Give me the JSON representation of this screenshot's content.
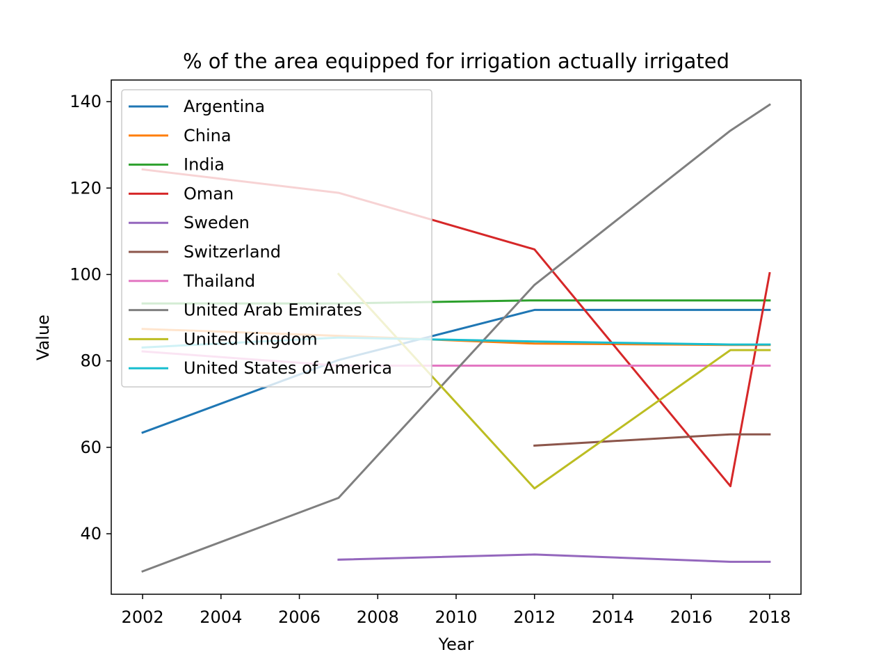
{
  "chart_data": {
    "type": "line",
    "title": "% of the area equipped for irrigation actually irrigated",
    "xlabel": "Year",
    "ylabel": "Value",
    "xlim": [
      2001.2,
      2018.8
    ],
    "ylim": [
      26,
      145
    ],
    "xticks": [
      2002,
      2004,
      2006,
      2008,
      2010,
      2012,
      2014,
      2016,
      2018
    ],
    "yticks": [
      40,
      60,
      80,
      100,
      120,
      140
    ],
    "grid": false,
    "legend_position": "top-left",
    "series": [
      {
        "name": "Argentina",
        "color": "#1f77b4",
        "points": [
          [
            2002,
            63.4
          ],
          [
            2007,
            80.2
          ],
          [
            2012,
            91.8
          ],
          [
            2017,
            91.8
          ],
          [
            2018,
            91.8
          ]
        ]
      },
      {
        "name": "China",
        "color": "#ff7f0e",
        "points": [
          [
            2002,
            87.4
          ],
          [
            2007,
            85.8
          ],
          [
            2012,
            84.0
          ],
          [
            2017,
            83.7
          ],
          [
            2018,
            83.7
          ]
        ]
      },
      {
        "name": "India",
        "color": "#2ca02c",
        "points": [
          [
            2002,
            93.3
          ],
          [
            2007,
            93.3
          ],
          [
            2012,
            94.0
          ],
          [
            2017,
            94.0
          ],
          [
            2018,
            94.0
          ]
        ]
      },
      {
        "name": "Oman",
        "color": "#d62728",
        "points": [
          [
            2002,
            124.3
          ],
          [
            2007,
            118.9
          ],
          [
            2012,
            105.8
          ],
          [
            2017,
            51.0
          ],
          [
            2018,
            100.3
          ]
        ]
      },
      {
        "name": "Sweden",
        "color": "#9467bd",
        "points": [
          [
            2007,
            34.0
          ],
          [
            2012,
            35.2
          ],
          [
            2017,
            33.5
          ],
          [
            2018,
            33.5
          ]
        ]
      },
      {
        "name": "Switzerland",
        "color": "#8c564b",
        "points": [
          [
            2012,
            60.4
          ],
          [
            2017,
            63.0
          ],
          [
            2018,
            63.0
          ]
        ]
      },
      {
        "name": "Thailand",
        "color": "#e377c2",
        "points": [
          [
            2002,
            82.2
          ],
          [
            2007,
            78.9
          ],
          [
            2012,
            78.9
          ],
          [
            2017,
            78.9
          ],
          [
            2018,
            78.9
          ]
        ]
      },
      {
        "name": "United Arab Emirates",
        "color": "#7f7f7f",
        "points": [
          [
            2002,
            31.3
          ],
          [
            2007,
            48.3
          ],
          [
            2012,
            97.6
          ],
          [
            2017,
            133.3
          ],
          [
            2018,
            139.3
          ]
        ]
      },
      {
        "name": "United Kingdom",
        "color": "#bcbd22",
        "points": [
          [
            2007,
            100.1
          ],
          [
            2012,
            50.5
          ],
          [
            2017,
            82.5
          ],
          [
            2018,
            82.5
          ]
        ]
      },
      {
        "name": "United States of America",
        "color": "#17becf",
        "points": [
          [
            2002,
            83.1
          ],
          [
            2007,
            85.4
          ],
          [
            2012,
            84.5
          ],
          [
            2017,
            83.8
          ],
          [
            2018,
            83.8
          ]
        ]
      }
    ]
  }
}
